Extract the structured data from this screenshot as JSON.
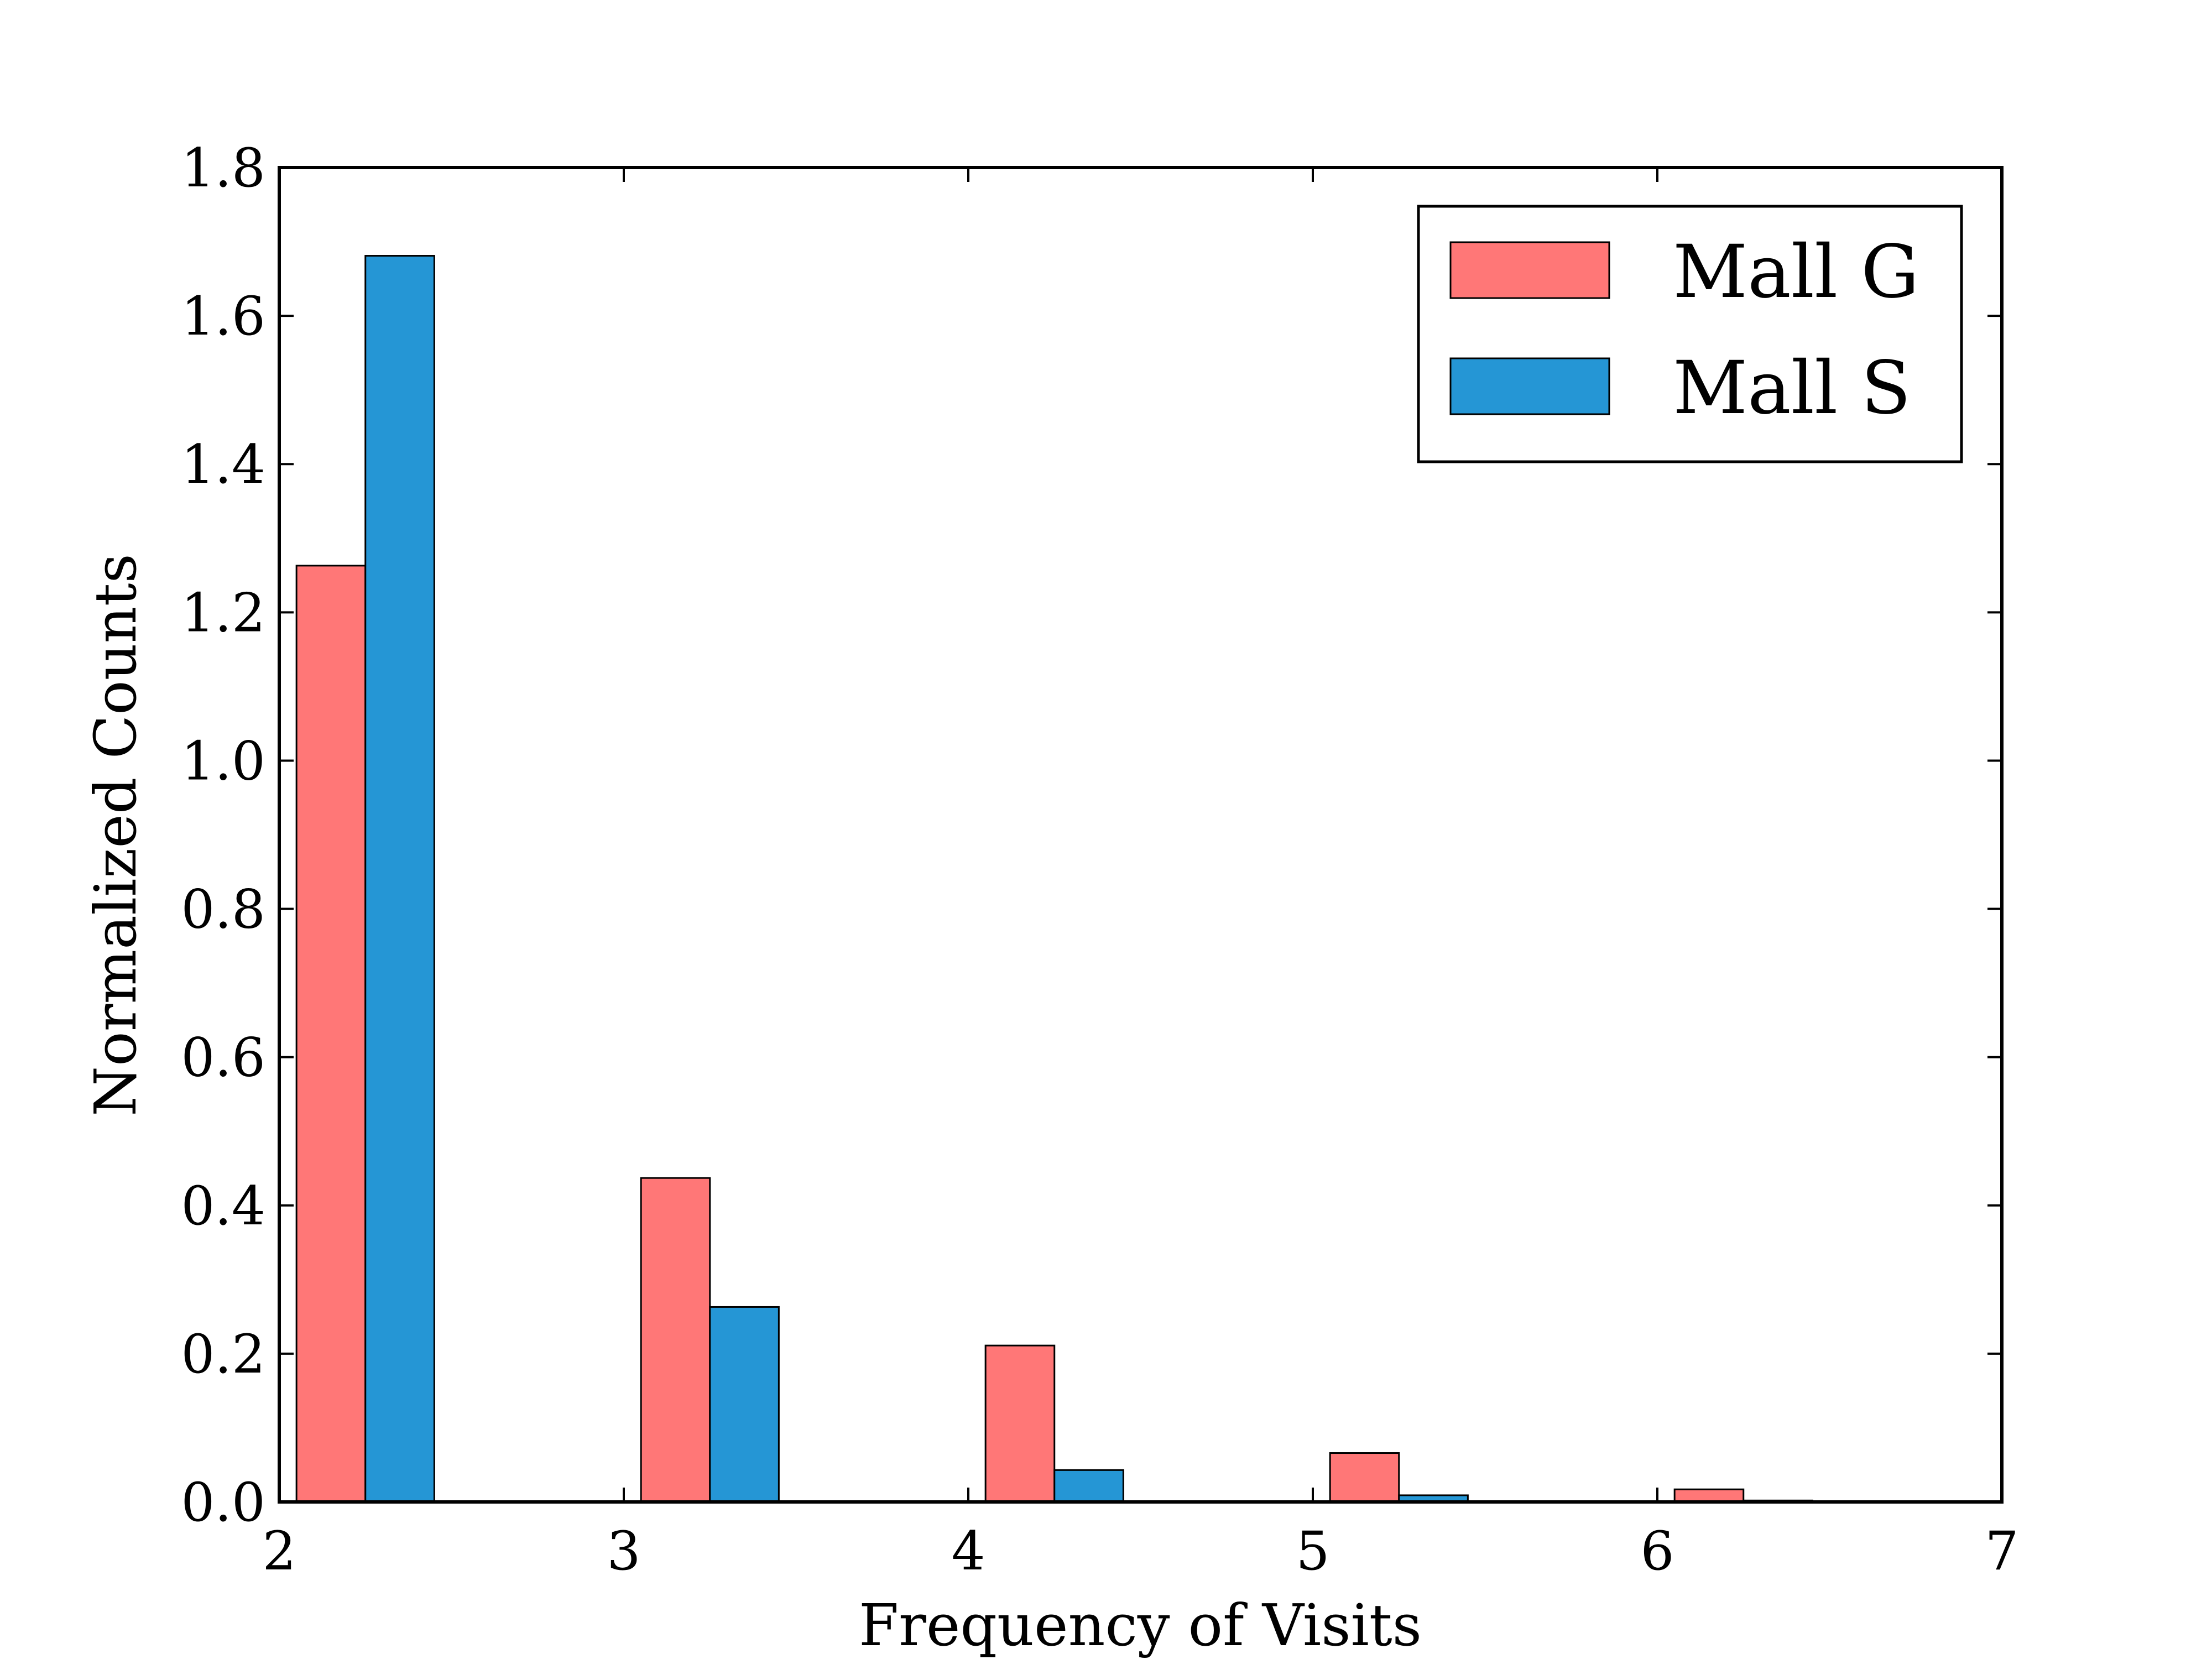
{
  "chart_data": {
    "type": "bar",
    "title": "",
    "xlabel": "Frequency of Visits",
    "ylabel": "Normalized Counts",
    "xlim": [
      2,
      7
    ],
    "ylim": [
      0,
      1.8
    ],
    "xticks": [
      "2",
      "3",
      "4",
      "5",
      "6",
      "7"
    ],
    "yticks": [
      "0.0",
      "0.2",
      "0.4",
      "0.6",
      "0.8",
      "1.0",
      "1.2",
      "1.4",
      "1.6",
      "1.8"
    ],
    "bin_starts": [
      2.05,
      3.05,
      4.05,
      5.05,
      6.05
    ],
    "bin_width": 0.2,
    "series": [
      {
        "name": "Mall G",
        "color": "#ff7777",
        "values": [
          1.263,
          0.437,
          0.211,
          0.066,
          0.017
        ]
      },
      {
        "name": "Mall S",
        "color": "#2596d5",
        "values": [
          1.681,
          0.263,
          0.043,
          0.009,
          0.002
        ]
      }
    ],
    "legend_position": "top-right",
    "grid": false
  }
}
